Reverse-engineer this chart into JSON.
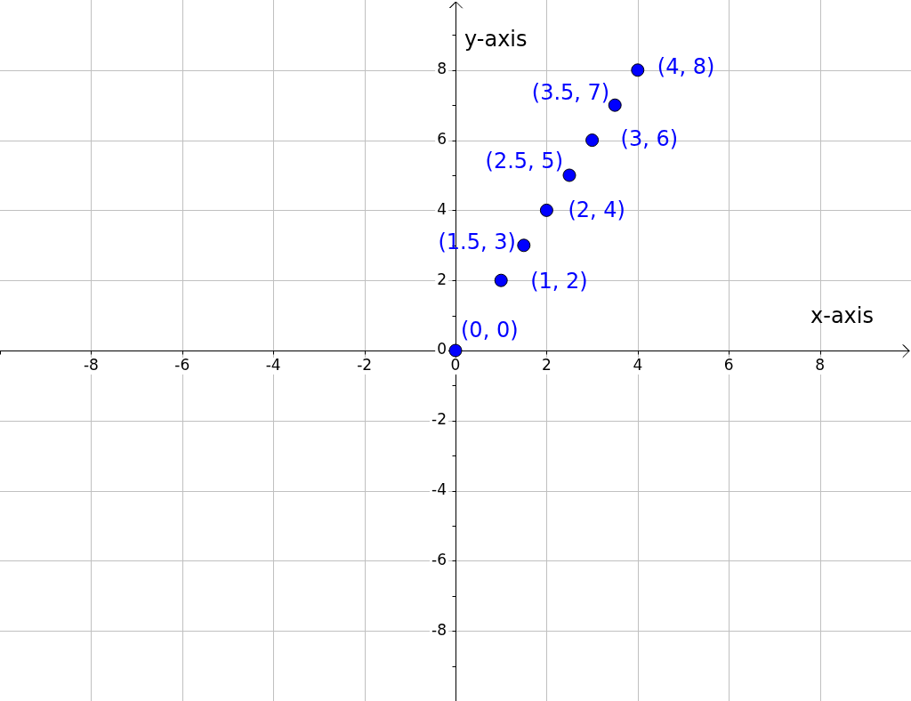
{
  "chart_data": {
    "type": "scatter",
    "xlabel": "x-axis",
    "ylabel": "y-axis",
    "x": [
      0,
      1,
      1.5,
      2,
      2.5,
      3,
      3.5,
      4
    ],
    "series": [
      {
        "color": "#0000ff",
        "values": [
          0,
          2,
          3,
          4,
          5,
          6,
          7,
          8
        ],
        "value_labels": [
          "(0, 0)",
          "(1, 2)",
          "(1.5, 3)",
          "(2, 4)",
          "(2.5, 5)",
          "(3, 6)",
          "(3.5, 7)",
          "(4, 8)"
        ]
      }
    ],
    "xlim": [
      -10,
      10
    ],
    "ylim": [
      -10,
      10
    ],
    "xticks": [
      {
        "value": -10,
        "label": null
      },
      -8,
      -6,
      -4,
      -2,
      0,
      2,
      4,
      6,
      8
    ],
    "yticks": [
      {
        "value": -9,
        "label": null
      },
      -8,
      {
        "value": -7,
        "label": null
      },
      -6,
      {
        "value": -5,
        "label": null
      },
      -4,
      {
        "value": -3,
        "label": null
      },
      -2,
      {
        "value": -1,
        "label": null
      },
      0,
      {
        "value": 1,
        "label": null
      },
      2,
      {
        "value": 3,
        "label": null
      },
      4,
      {
        "value": 5,
        "label": null
      },
      6,
      {
        "value": 7,
        "label": null
      },
      8,
      {
        "value": 9,
        "label": null
      }
    ],
    "grid": true,
    "marker": "circle"
  }
}
